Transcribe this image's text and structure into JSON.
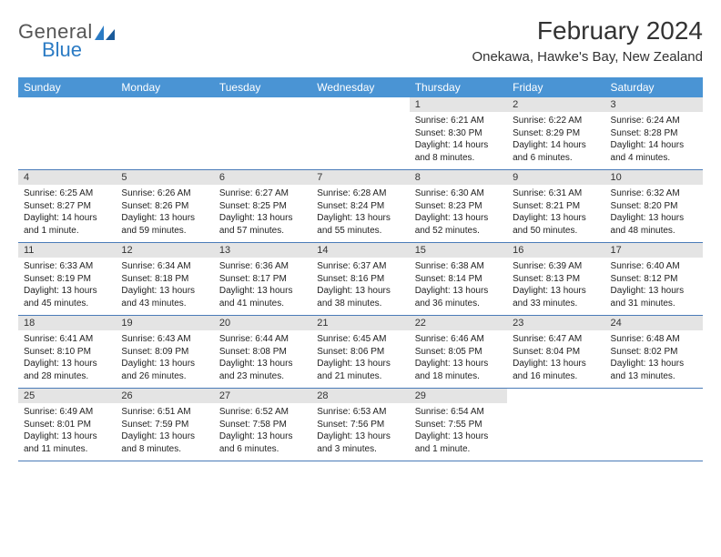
{
  "brand": {
    "name": "General",
    "sub": "Blue"
  },
  "title": "February 2024",
  "location": "Onekawa, Hawke's Bay, New Zealand",
  "colors": {
    "header_bg": "#4a94d4",
    "header_fg": "#ffffff",
    "daynum_bg": "#e4e4e4",
    "row_border": "#4a7bb8",
    "brand_gray": "#555555",
    "brand_blue": "#2b7bc4"
  },
  "day_names": [
    "Sunday",
    "Monday",
    "Tuesday",
    "Wednesday",
    "Thursday",
    "Friday",
    "Saturday"
  ],
  "weeks": [
    [
      {
        "n": "",
        "sr": "",
        "ss": "",
        "dl": ""
      },
      {
        "n": "",
        "sr": "",
        "ss": "",
        "dl": ""
      },
      {
        "n": "",
        "sr": "",
        "ss": "",
        "dl": ""
      },
      {
        "n": "",
        "sr": "",
        "ss": "",
        "dl": ""
      },
      {
        "n": "1",
        "sr": "Sunrise: 6:21 AM",
        "ss": "Sunset: 8:30 PM",
        "dl": "Daylight: 14 hours and 8 minutes."
      },
      {
        "n": "2",
        "sr": "Sunrise: 6:22 AM",
        "ss": "Sunset: 8:29 PM",
        "dl": "Daylight: 14 hours and 6 minutes."
      },
      {
        "n": "3",
        "sr": "Sunrise: 6:24 AM",
        "ss": "Sunset: 8:28 PM",
        "dl": "Daylight: 14 hours and 4 minutes."
      }
    ],
    [
      {
        "n": "4",
        "sr": "Sunrise: 6:25 AM",
        "ss": "Sunset: 8:27 PM",
        "dl": "Daylight: 14 hours and 1 minute."
      },
      {
        "n": "5",
        "sr": "Sunrise: 6:26 AM",
        "ss": "Sunset: 8:26 PM",
        "dl": "Daylight: 13 hours and 59 minutes."
      },
      {
        "n": "6",
        "sr": "Sunrise: 6:27 AM",
        "ss": "Sunset: 8:25 PM",
        "dl": "Daylight: 13 hours and 57 minutes."
      },
      {
        "n": "7",
        "sr": "Sunrise: 6:28 AM",
        "ss": "Sunset: 8:24 PM",
        "dl": "Daylight: 13 hours and 55 minutes."
      },
      {
        "n": "8",
        "sr": "Sunrise: 6:30 AM",
        "ss": "Sunset: 8:23 PM",
        "dl": "Daylight: 13 hours and 52 minutes."
      },
      {
        "n": "9",
        "sr": "Sunrise: 6:31 AM",
        "ss": "Sunset: 8:21 PM",
        "dl": "Daylight: 13 hours and 50 minutes."
      },
      {
        "n": "10",
        "sr": "Sunrise: 6:32 AM",
        "ss": "Sunset: 8:20 PM",
        "dl": "Daylight: 13 hours and 48 minutes."
      }
    ],
    [
      {
        "n": "11",
        "sr": "Sunrise: 6:33 AM",
        "ss": "Sunset: 8:19 PM",
        "dl": "Daylight: 13 hours and 45 minutes."
      },
      {
        "n": "12",
        "sr": "Sunrise: 6:34 AM",
        "ss": "Sunset: 8:18 PM",
        "dl": "Daylight: 13 hours and 43 minutes."
      },
      {
        "n": "13",
        "sr": "Sunrise: 6:36 AM",
        "ss": "Sunset: 8:17 PM",
        "dl": "Daylight: 13 hours and 41 minutes."
      },
      {
        "n": "14",
        "sr": "Sunrise: 6:37 AM",
        "ss": "Sunset: 8:16 PM",
        "dl": "Daylight: 13 hours and 38 minutes."
      },
      {
        "n": "15",
        "sr": "Sunrise: 6:38 AM",
        "ss": "Sunset: 8:14 PM",
        "dl": "Daylight: 13 hours and 36 minutes."
      },
      {
        "n": "16",
        "sr": "Sunrise: 6:39 AM",
        "ss": "Sunset: 8:13 PM",
        "dl": "Daylight: 13 hours and 33 minutes."
      },
      {
        "n": "17",
        "sr": "Sunrise: 6:40 AM",
        "ss": "Sunset: 8:12 PM",
        "dl": "Daylight: 13 hours and 31 minutes."
      }
    ],
    [
      {
        "n": "18",
        "sr": "Sunrise: 6:41 AM",
        "ss": "Sunset: 8:10 PM",
        "dl": "Daylight: 13 hours and 28 minutes."
      },
      {
        "n": "19",
        "sr": "Sunrise: 6:43 AM",
        "ss": "Sunset: 8:09 PM",
        "dl": "Daylight: 13 hours and 26 minutes."
      },
      {
        "n": "20",
        "sr": "Sunrise: 6:44 AM",
        "ss": "Sunset: 8:08 PM",
        "dl": "Daylight: 13 hours and 23 minutes."
      },
      {
        "n": "21",
        "sr": "Sunrise: 6:45 AM",
        "ss": "Sunset: 8:06 PM",
        "dl": "Daylight: 13 hours and 21 minutes."
      },
      {
        "n": "22",
        "sr": "Sunrise: 6:46 AM",
        "ss": "Sunset: 8:05 PM",
        "dl": "Daylight: 13 hours and 18 minutes."
      },
      {
        "n": "23",
        "sr": "Sunrise: 6:47 AM",
        "ss": "Sunset: 8:04 PM",
        "dl": "Daylight: 13 hours and 16 minutes."
      },
      {
        "n": "24",
        "sr": "Sunrise: 6:48 AM",
        "ss": "Sunset: 8:02 PM",
        "dl": "Daylight: 13 hours and 13 minutes."
      }
    ],
    [
      {
        "n": "25",
        "sr": "Sunrise: 6:49 AM",
        "ss": "Sunset: 8:01 PM",
        "dl": "Daylight: 13 hours and 11 minutes."
      },
      {
        "n": "26",
        "sr": "Sunrise: 6:51 AM",
        "ss": "Sunset: 7:59 PM",
        "dl": "Daylight: 13 hours and 8 minutes."
      },
      {
        "n": "27",
        "sr": "Sunrise: 6:52 AM",
        "ss": "Sunset: 7:58 PM",
        "dl": "Daylight: 13 hours and 6 minutes."
      },
      {
        "n": "28",
        "sr": "Sunrise: 6:53 AM",
        "ss": "Sunset: 7:56 PM",
        "dl": "Daylight: 13 hours and 3 minutes."
      },
      {
        "n": "29",
        "sr": "Sunrise: 6:54 AM",
        "ss": "Sunset: 7:55 PM",
        "dl": "Daylight: 13 hours and 1 minute."
      },
      {
        "n": "",
        "sr": "",
        "ss": "",
        "dl": ""
      },
      {
        "n": "",
        "sr": "",
        "ss": "",
        "dl": ""
      }
    ]
  ]
}
